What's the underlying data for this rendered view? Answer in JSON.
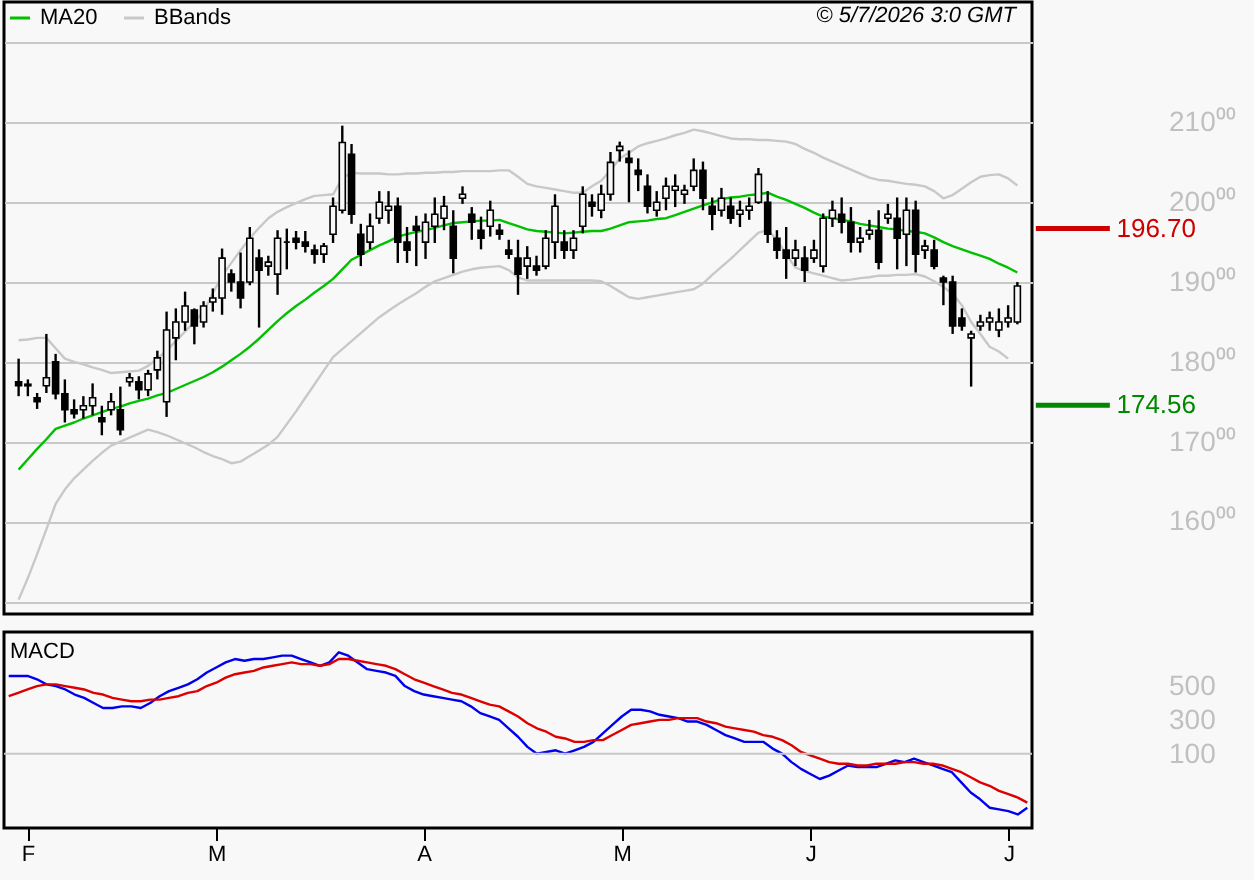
{
  "chart_data": [
    {
      "type": "candlestick",
      "categories": [
        null,
        null,
        null,
        null,
        null,
        null,
        null,
        null,
        null,
        null,
        null,
        null,
        null,
        null,
        null,
        null,
        null,
        null,
        null,
        null,
        null,
        null,
        null,
        null,
        null,
        null,
        null,
        null,
        null,
        null,
        null,
        null,
        null,
        null,
        null,
        null,
        null,
        null,
        null,
        null,
        null,
        null,
        null,
        null,
        null,
        null,
        null,
        null,
        null,
        null,
        null,
        null,
        null,
        null,
        null,
        null,
        null,
        null,
        null,
        null,
        null,
        null,
        null,
        null,
        null,
        null,
        null,
        null,
        null,
        null,
        null,
        null,
        null,
        null,
        null,
        null,
        null,
        null,
        null,
        null,
        null,
        null,
        null,
        null,
        null,
        null,
        null,
        null,
        null,
        null,
        null,
        null,
        null,
        null,
        null,
        null,
        null,
        null,
        null,
        null,
        null,
        null,
        null,
        null,
        null,
        null,
        null,
        null,
        null
      ],
      "ohlc": [
        [
          177.5,
          180.4,
          175.7,
          177.0
        ],
        [
          177.0,
          177.8,
          175.7,
          177.2
        ],
        [
          175.5,
          176.1,
          174.1,
          175.0
        ],
        [
          177.0,
          183.5,
          176.1,
          178.0
        ],
        [
          180.0,
          181.0,
          175.3,
          176.0
        ],
        [
          176.0,
          177.8,
          172.4,
          174.0
        ],
        [
          174.0,
          175.3,
          172.9,
          173.5
        ],
        [
          174.0,
          175.7,
          172.9,
          174.5
        ],
        [
          174.5,
          177.3,
          173.3,
          175.5
        ],
        [
          173.0,
          174.5,
          170.8,
          172.5
        ],
        [
          174.0,
          176.1,
          173.3,
          175.0
        ],
        [
          174.0,
          176.9,
          170.8,
          171.5
        ],
        [
          177.5,
          178.6,
          176.9,
          178.0
        ],
        [
          177.5,
          178.2,
          175.3,
          176.5
        ],
        [
          176.5,
          179.0,
          175.7,
          178.5
        ],
        [
          179.0,
          181.4,
          177.8,
          180.5
        ],
        [
          175.0,
          186.3,
          173.1,
          184.0
        ],
        [
          183.0,
          186.7,
          180.2,
          185.0
        ],
        [
          185.0,
          188.8,
          183.9,
          187.0
        ],
        [
          186.5,
          186.7,
          182.2,
          184.5
        ],
        [
          185.0,
          187.6,
          184.3,
          187.0
        ],
        [
          187.5,
          189.2,
          186.3,
          188.0
        ],
        [
          188.0,
          194.2,
          185.9,
          193.0
        ],
        [
          191.0,
          191.6,
          188.8,
          190.0
        ],
        [
          190.0,
          193.7,
          186.7,
          188.0
        ],
        [
          190.0,
          196.9,
          189.6,
          195.5
        ],
        [
          193.0,
          194.1,
          184.3,
          191.5
        ],
        [
          192.0,
          193.3,
          190.8,
          192.5
        ],
        [
          191.0,
          196.5,
          188.4,
          195.5
        ],
        [
          195.0,
          196.7,
          191.6,
          195.0
        ],
        [
          195.5,
          196.4,
          194.1,
          195.0
        ],
        [
          195.0,
          196.4,
          193.7,
          194.5
        ],
        [
          194.0,
          194.7,
          192.3,
          193.5
        ],
        [
          193.5,
          194.9,
          192.4,
          194.5
        ],
        [
          196.0,
          200.6,
          194.9,
          199.5
        ],
        [
          199.0,
          209.6,
          198.6,
          207.5
        ],
        [
          206.0,
          207.3,
          197.3,
          198.5
        ],
        [
          196.0,
          197.3,
          192.0,
          193.5
        ],
        [
          195.0,
          198.6,
          194.1,
          197.0
        ],
        [
          198.0,
          201.4,
          197.3,
          200.0
        ],
        [
          199.0,
          201.4,
          197.3,
          199.5
        ],
        [
          199.5,
          200.6,
          192.4,
          195.0
        ],
        [
          195.0,
          196.9,
          192.4,
          194.0
        ],
        [
          197.0,
          198.3,
          192.0,
          196.5
        ],
        [
          195.0,
          198.6,
          192.9,
          197.5
        ],
        [
          197.0,
          200.6,
          194.9,
          198.5
        ],
        [
          198.0,
          200.8,
          196.5,
          199.5
        ],
        [
          197.0,
          199.0,
          191.1,
          193.0
        ],
        [
          200.5,
          202.0,
          199.8,
          201.0
        ],
        [
          198.5,
          199.4,
          195.3,
          197.5
        ],
        [
          196.5,
          198.2,
          194.1,
          195.5
        ],
        [
          197.0,
          200.2,
          195.7,
          199.0
        ],
        [
          196.5,
          197.3,
          195.3,
          196.0
        ],
        [
          194.0,
          195.3,
          192.9,
          193.5
        ],
        [
          193.0,
          195.3,
          188.4,
          191.0
        ],
        [
          192.0,
          194.5,
          190.4,
          193.0
        ],
        [
          192.0,
          193.3,
          190.8,
          191.5
        ],
        [
          192.0,
          196.5,
          191.6,
          195.5
        ],
        [
          195.0,
          201.0,
          192.9,
          199.5
        ],
        [
          195.0,
          196.5,
          192.9,
          194.0
        ],
        [
          194.0,
          196.5,
          192.9,
          195.5
        ],
        [
          197.0,
          202.0,
          196.1,
          201.0
        ],
        [
          200.0,
          201.0,
          198.2,
          199.5
        ],
        [
          199.0,
          202.2,
          198.0,
          201.0
        ],
        [
          201.0,
          206.3,
          200.2,
          205.0
        ],
        [
          206.5,
          207.6,
          205.1,
          207.0
        ],
        [
          205.5,
          206.5,
          200.0,
          205.0
        ],
        [
          204.0,
          205.5,
          201.4,
          203.5
        ],
        [
          202.0,
          203.5,
          198.6,
          199.5
        ],
        [
          199.0,
          201.4,
          198.2,
          200.0
        ],
        [
          200.5,
          203.1,
          199.0,
          202.0
        ],
        [
          201.5,
          203.5,
          199.4,
          202.0
        ],
        [
          201.0,
          202.2,
          199.8,
          201.5
        ],
        [
          202.0,
          205.5,
          201.4,
          204.0
        ],
        [
          204.0,
          205.1,
          199.0,
          200.5
        ],
        [
          199.5,
          200.6,
          196.5,
          198.5
        ],
        [
          199.0,
          201.8,
          198.2,
          200.5
        ],
        [
          199.5,
          200.6,
          197.3,
          198.0
        ],
        [
          198.5,
          200.2,
          196.9,
          199.0
        ],
        [
          199.0,
          200.6,
          197.8,
          199.5
        ],
        [
          200.0,
          204.3,
          199.8,
          203.5
        ],
        [
          200.0,
          201.4,
          194.9,
          196.0
        ],
        [
          195.5,
          196.5,
          192.9,
          194.0
        ],
        [
          194.0,
          196.9,
          190.4,
          193.0
        ],
        [
          193.0,
          195.3,
          192.0,
          194.0
        ],
        [
          193.0,
          194.5,
          190.0,
          191.5
        ],
        [
          193.0,
          195.3,
          192.4,
          194.0
        ],
        [
          192.0,
          198.6,
          191.2,
          198.0
        ],
        [
          198.0,
          200.2,
          196.9,
          199.0
        ],
        [
          198.5,
          200.6,
          196.1,
          197.5
        ],
        [
          197.5,
          199.4,
          193.7,
          195.0
        ],
        [
          195.0,
          196.9,
          193.7,
          195.5
        ],
        [
          196.0,
          197.8,
          195.3,
          196.5
        ],
        [
          196.5,
          199.0,
          191.6,
          192.5
        ],
        [
          198.0,
          199.8,
          197.3,
          198.5
        ],
        [
          198.0,
          200.6,
          191.6,
          195.5
        ],
        [
          196.0,
          200.6,
          192.0,
          199.0
        ],
        [
          199.0,
          200.2,
          191.2,
          193.5
        ],
        [
          194.0,
          195.3,
          192.9,
          194.5
        ],
        [
          194.0,
          195.3,
          191.6,
          192.0
        ],
        [
          190.5,
          190.8,
          187.1,
          190.0
        ],
        [
          190.0,
          190.8,
          183.5,
          184.5
        ],
        [
          185.5,
          186.7,
          183.9,
          184.5
        ],
        [
          183.0,
          183.9,
          176.9,
          183.5
        ],
        [
          184.5,
          185.9,
          183.9,
          185.0
        ],
        [
          185.0,
          186.3,
          183.9,
          185.5
        ],
        [
          184.0,
          186.7,
          183.1,
          185.0
        ],
        [
          185.0,
          187.1,
          184.3,
          185.5
        ],
        [
          185.0,
          190.0,
          184.7,
          189.5
        ]
      ],
      "color": "#000000",
      "series": [
        {
          "type": "line",
          "name": "MA20",
          "color": "#00c000",
          "values": [
            166.5,
            167.8,
            169.1,
            170.3,
            171.6,
            172.0,
            172.4,
            172.9,
            173.3,
            173.7,
            174.1,
            174.4,
            174.8,
            175.1,
            175.4,
            175.8,
            176.1,
            176.6,
            177.1,
            177.6,
            178.1,
            178.7,
            179.4,
            180.2,
            181.0,
            181.9,
            182.9,
            184.0,
            185.1,
            186.1,
            187.0,
            187.8,
            188.7,
            189.5,
            190.4,
            191.6,
            192.8,
            193.4,
            194.0,
            194.6,
            195.1,
            195.7,
            196.0,
            196.3,
            196.5,
            196.8,
            197.1,
            197.4,
            197.5,
            197.6,
            197.7,
            197.7,
            197.8,
            197.4,
            197.0,
            196.6,
            196.4,
            196.3,
            196.2,
            196.1,
            196.2,
            196.3,
            196.4,
            196.4,
            196.7,
            197.1,
            197.5,
            197.6,
            197.7,
            197.9,
            198.0,
            198.4,
            198.8,
            199.2,
            199.6,
            200.0,
            200.4,
            200.6,
            200.7,
            200.9,
            201.0,
            201.2,
            200.7,
            200.3,
            199.8,
            199.3,
            198.7,
            198.2,
            198.0,
            197.8,
            197.6,
            197.3,
            197.1,
            196.9,
            196.7,
            196.6,
            196.4,
            196.3,
            196.1,
            195.6,
            195.0,
            194.5,
            194.1,
            193.7,
            193.3,
            192.9,
            192.3,
            191.8,
            191.2
          ]
        },
        {
          "type": "line",
          "name": "BBands",
          "color": "#c8c8c8",
          "values": [
            182.7,
            182.8,
            183.0,
            183.0,
            181.7,
            180.4,
            180.0,
            179.7,
            179.3,
            179.0,
            178.6,
            178.7,
            178.8,
            178.9,
            179.5,
            180.4,
            181.4,
            182.6,
            183.8,
            185.0,
            186.3,
            188.6,
            190.8,
            192.4,
            194.0,
            195.5,
            196.8,
            198.0,
            198.8,
            199.4,
            199.9,
            200.4,
            200.8,
            200.9,
            201.0,
            203.0,
            203.7,
            203.6,
            203.6,
            203.6,
            203.5,
            203.5,
            203.6,
            203.6,
            203.7,
            203.7,
            203.8,
            203.8,
            203.9,
            203.9,
            203.9,
            203.9,
            204.0,
            204.0,
            203.2,
            202.3,
            202.0,
            201.8,
            201.6,
            201.4,
            201.2,
            201.2,
            202.0,
            202.7,
            204.0,
            205.5,
            206.2,
            207.0,
            207.4,
            207.7,
            208.0,
            208.4,
            208.7,
            209.1,
            208.9,
            208.6,
            208.3,
            208.0,
            207.9,
            207.9,
            207.8,
            207.8,
            207.7,
            207.6,
            207.3,
            206.7,
            206.2,
            205.6,
            205.1,
            204.6,
            204.1,
            203.6,
            203.1,
            202.8,
            202.7,
            202.5,
            202.3,
            202.2,
            202.0,
            201.4,
            200.5,
            200.9,
            201.7,
            202.5,
            203.2,
            203.4,
            203.5,
            203.0,
            202.1
          ]
        },
        {
          "type": "line",
          "color": "#c8c8c8",
          "values": [
            150.2,
            152.9,
            155.9,
            159.0,
            162.2,
            164.0,
            165.4,
            166.5,
            167.6,
            168.6,
            169.5,
            170.0,
            170.5,
            171.0,
            171.5,
            171.2,
            170.8,
            170.3,
            169.8,
            169.3,
            168.7,
            168.2,
            167.8,
            167.3,
            167.5,
            168.2,
            168.9,
            169.6,
            170.6,
            172.2,
            173.8,
            175.5,
            177.2,
            178.9,
            180.6,
            181.6,
            182.6,
            183.6,
            184.6,
            185.6,
            186.4,
            187.2,
            187.9,
            188.6,
            189.4,
            190.1,
            190.5,
            190.9,
            191.3,
            191.6,
            191.8,
            191.9,
            192.0,
            191.5,
            190.6,
            190.2,
            190.2,
            190.2,
            190.2,
            190.2,
            190.2,
            190.2,
            190.2,
            190.1,
            189.5,
            188.8,
            188.1,
            187.9,
            188.1,
            188.3,
            188.5,
            188.7,
            188.9,
            189.1,
            189.8,
            190.9,
            191.9,
            192.9,
            194.0,
            195.1,
            196.2,
            196.5,
            195.3,
            193.5,
            191.8,
            191.4,
            191.1,
            190.8,
            190.5,
            190.2,
            190.3,
            190.5,
            190.6,
            190.8,
            190.8,
            190.9,
            190.9,
            191.0,
            190.7,
            190.1,
            189.4,
            188.5,
            187.1,
            185.0,
            183.5,
            181.9,
            181.3,
            180.4,
            null
          ]
        }
      ],
      "ylim": [
        148.4,
        225.1
      ],
      "yticks": [
        {
          "value": 150,
          "label": null
        },
        {
          "value": 160,
          "label": "160⁰⁰"
        },
        {
          "value": 170,
          "label": "170⁰⁰"
        },
        {
          "value": 180,
          "label": "180⁰⁰"
        },
        {
          "value": 190,
          "label": "190⁰⁰"
        },
        {
          "value": 200,
          "label": "200⁰⁰"
        },
        {
          "value": 210,
          "label": "210⁰⁰"
        },
        {
          "value": 220,
          "label": null
        }
      ],
      "grid": "y",
      "tick_labels": "y",
      "legend": "top left",
      "ref_lines": [
        {
          "axis": "y",
          "value": 196.7,
          "label": "196.70",
          "color": "#cc0000"
        },
        {
          "axis": "y",
          "value": 174.56,
          "label": "174.56",
          "color": "#008800"
        }
      ],
      "annotations": [
        "© 5/7/2026 3:0 GMT"
      ]
    },
    {
      "type": "line",
      "title": "MACD",
      "categories": [
        null,
        null,
        "F",
        null,
        null,
        null,
        null,
        null,
        null,
        null,
        null,
        null,
        null,
        null,
        null,
        null,
        null,
        null,
        null,
        null,
        null,
        null,
        "M",
        null,
        null,
        null,
        null,
        null,
        null,
        null,
        null,
        null,
        null,
        null,
        null,
        null,
        null,
        null,
        null,
        null,
        null,
        null,
        null,
        null,
        "A",
        null,
        null,
        null,
        null,
        null,
        null,
        null,
        null,
        null,
        null,
        null,
        null,
        null,
        null,
        null,
        null,
        null,
        null,
        null,
        null,
        "M",
        null,
        null,
        null,
        null,
        null,
        null,
        null,
        null,
        null,
        null,
        null,
        null,
        null,
        null,
        null,
        null,
        null,
        null,
        null,
        "J",
        null,
        null,
        null,
        null,
        null,
        null,
        null,
        null,
        null,
        null,
        null,
        null,
        null,
        null,
        null,
        null,
        null,
        null,
        null,
        null,
        "J",
        null,
        null
      ],
      "ylim": [
        -340,
        820
      ],
      "yticks": [
        100,
        300,
        500
      ],
      "ref_lines": [
        {
          "axis": "y",
          "value": 100,
          "color": "#c8c8c8"
        }
      ],
      "series": [
        {
          "color": "#0000ee",
          "values": [
            560,
            560,
            560,
            540,
            510,
            500,
            480,
            450,
            430,
            400,
            370,
            370,
            380,
            380,
            370,
            400,
            440,
            470,
            490,
            510,
            540,
            580,
            610,
            640,
            660,
            650,
            660,
            660,
            670,
            680,
            680,
            660,
            640,
            620,
            640,
            700,
            680,
            640,
            600,
            590,
            580,
            560,
            500,
            470,
            450,
            440,
            430,
            420,
            410,
            380,
            340,
            320,
            300,
            250,
            200,
            140,
            100,
            110,
            120,
            100,
            120,
            140,
            170,
            220,
            270,
            320,
            360,
            360,
            350,
            330,
            320,
            310,
            290,
            290,
            270,
            240,
            210,
            190,
            170,
            170,
            170,
            130,
            100,
            50,
            10,
            -20,
            -50,
            -30,
            0,
            30,
            20,
            20,
            20,
            40,
            60,
            50,
            70,
            50,
            30,
            10,
            -10,
            -70,
            -130,
            -170,
            -220,
            -230,
            -240,
            -260,
            -220
          ]
        },
        {
          "color": "#dd0000",
          "values": [
            440,
            460,
            480,
            500,
            510,
            510,
            500,
            490,
            480,
            460,
            450,
            430,
            420,
            410,
            410,
            420,
            420,
            430,
            440,
            460,
            470,
            500,
            520,
            550,
            570,
            580,
            590,
            610,
            620,
            630,
            640,
            630,
            630,
            620,
            630,
            660,
            660,
            650,
            640,
            630,
            620,
            600,
            570,
            540,
            520,
            500,
            480,
            460,
            450,
            430,
            410,
            390,
            380,
            350,
            320,
            280,
            250,
            230,
            200,
            190,
            170,
            170,
            180,
            180,
            210,
            240,
            270,
            280,
            290,
            300,
            300,
            310,
            310,
            310,
            290,
            280,
            260,
            250,
            240,
            230,
            210,
            200,
            180,
            150,
            110,
            90,
            70,
            50,
            40,
            40,
            30,
            30,
            40,
            40,
            40,
            50,
            50,
            40,
            40,
            30,
            10,
            -10,
            -40,
            -70,
            -90,
            -120,
            -140,
            -160,
            -190
          ]
        }
      ]
    }
  ]
}
